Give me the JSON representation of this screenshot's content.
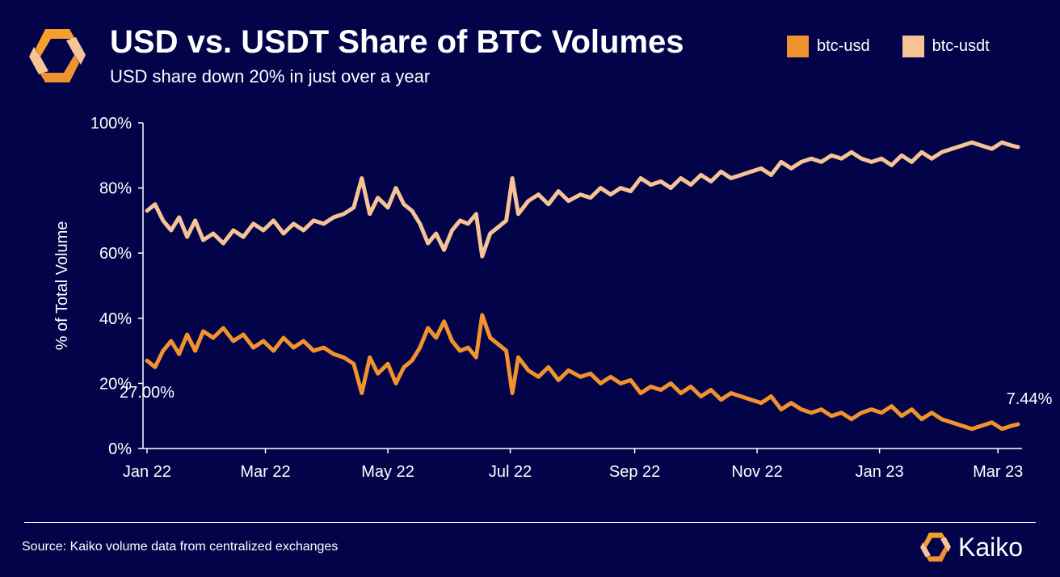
{
  "header": {
    "title": "USD vs. USDT Share of BTC Volumes",
    "subtitle": "USD share down 20% in just over a year"
  },
  "footer": {
    "source": "Source: Kaiko volume data from centralized exchanges",
    "brand": "Kaiko"
  },
  "colors": {
    "background": "#03034a",
    "btc_usd": "#f0922e",
    "btc_usdt": "#f6c396",
    "text": "#ffffff"
  },
  "icons": {
    "logo": "kaiko-logo-icon"
  },
  "chart_data": {
    "type": "line",
    "ylabel": "% of Total Volume",
    "ylim": [
      0,
      100
    ],
    "y_ticks": [
      "0%",
      "20%",
      "40%",
      "60%",
      "80%",
      "100%"
    ],
    "x_range": [
      "2021-12-30",
      "2023-03-13"
    ],
    "x_ticks": [
      {
        "date": "2022-01-01",
        "label": "Jan 22"
      },
      {
        "date": "2022-03-01",
        "label": "Mar 22"
      },
      {
        "date": "2022-05-01",
        "label": "May 22"
      },
      {
        "date": "2022-07-01",
        "label": "Jul 22"
      },
      {
        "date": "2022-09-01",
        "label": "Sep 22"
      },
      {
        "date": "2022-11-01",
        "label": "Nov 22"
      },
      {
        "date": "2023-01-01",
        "label": "Jan 23"
      },
      {
        "date": "2023-03-01",
        "label": "Mar 23"
      }
    ],
    "legend_position": "top-right",
    "series": [
      {
        "name": "btc-usd",
        "color": "#f0922e",
        "points": [
          [
            "2022-01-01",
            27
          ],
          [
            "2022-01-05",
            25
          ],
          [
            "2022-01-09",
            30
          ],
          [
            "2022-01-13",
            33
          ],
          [
            "2022-01-17",
            29
          ],
          [
            "2022-01-21",
            35
          ],
          [
            "2022-01-25",
            30
          ],
          [
            "2022-01-29",
            36
          ],
          [
            "2022-02-03",
            34
          ],
          [
            "2022-02-08",
            37
          ],
          [
            "2022-02-13",
            33
          ],
          [
            "2022-02-18",
            35
          ],
          [
            "2022-02-23",
            31
          ],
          [
            "2022-02-28",
            33
          ],
          [
            "2022-03-05",
            30
          ],
          [
            "2022-03-10",
            34
          ],
          [
            "2022-03-15",
            31
          ],
          [
            "2022-03-20",
            33
          ],
          [
            "2022-03-25",
            30
          ],
          [
            "2022-03-30",
            31
          ],
          [
            "2022-04-04",
            29
          ],
          [
            "2022-04-09",
            28
          ],
          [
            "2022-04-14",
            26
          ],
          [
            "2022-04-18",
            17
          ],
          [
            "2022-04-22",
            28
          ],
          [
            "2022-04-26",
            23
          ],
          [
            "2022-05-01",
            26
          ],
          [
            "2022-05-05",
            20
          ],
          [
            "2022-05-09",
            25
          ],
          [
            "2022-05-13",
            27
          ],
          [
            "2022-05-17",
            31
          ],
          [
            "2022-05-21",
            37
          ],
          [
            "2022-05-25",
            34
          ],
          [
            "2022-05-29",
            39
          ],
          [
            "2022-06-02",
            33
          ],
          [
            "2022-06-06",
            30
          ],
          [
            "2022-06-10",
            31
          ],
          [
            "2022-06-14",
            28
          ],
          [
            "2022-06-17",
            41
          ],
          [
            "2022-06-21",
            34
          ],
          [
            "2022-06-25",
            32
          ],
          [
            "2022-06-29",
            30
          ],
          [
            "2022-07-02",
            17
          ],
          [
            "2022-07-05",
            28
          ],
          [
            "2022-07-10",
            24
          ],
          [
            "2022-07-15",
            22
          ],
          [
            "2022-07-20",
            25
          ],
          [
            "2022-07-25",
            21
          ],
          [
            "2022-07-30",
            24
          ],
          [
            "2022-08-05",
            22
          ],
          [
            "2022-08-10",
            23
          ],
          [
            "2022-08-15",
            20
          ],
          [
            "2022-08-20",
            22
          ],
          [
            "2022-08-25",
            20
          ],
          [
            "2022-08-30",
            21
          ],
          [
            "2022-09-04",
            17
          ],
          [
            "2022-09-09",
            19
          ],
          [
            "2022-09-14",
            18
          ],
          [
            "2022-09-19",
            20
          ],
          [
            "2022-09-24",
            17
          ],
          [
            "2022-09-29",
            19
          ],
          [
            "2022-10-04",
            16
          ],
          [
            "2022-10-09",
            18
          ],
          [
            "2022-10-14",
            15
          ],
          [
            "2022-10-19",
            17
          ],
          [
            "2022-10-24",
            16
          ],
          [
            "2022-10-29",
            15
          ],
          [
            "2022-11-03",
            14
          ],
          [
            "2022-11-08",
            16
          ],
          [
            "2022-11-13",
            12
          ],
          [
            "2022-11-18",
            14
          ],
          [
            "2022-11-23",
            12
          ],
          [
            "2022-11-28",
            11
          ],
          [
            "2022-12-03",
            12
          ],
          [
            "2022-12-08",
            10
          ],
          [
            "2022-12-13",
            11
          ],
          [
            "2022-12-18",
            9
          ],
          [
            "2022-12-23",
            11
          ],
          [
            "2022-12-28",
            12
          ],
          [
            "2023-01-02",
            11
          ],
          [
            "2023-01-07",
            13
          ],
          [
            "2023-01-12",
            10
          ],
          [
            "2023-01-17",
            12
          ],
          [
            "2023-01-22",
            9
          ],
          [
            "2023-01-27",
            11
          ],
          [
            "2023-02-01",
            9
          ],
          [
            "2023-02-06",
            8
          ],
          [
            "2023-02-11",
            7
          ],
          [
            "2023-02-16",
            6
          ],
          [
            "2023-02-21",
            7
          ],
          [
            "2023-02-26",
            8
          ],
          [
            "2023-03-03",
            6
          ],
          [
            "2023-03-08",
            7
          ],
          [
            "2023-03-11",
            7.44
          ]
        ]
      },
      {
        "name": "btc-usdt",
        "color": "#f6c396",
        "points": [
          [
            "2022-01-01",
            73
          ],
          [
            "2022-01-05",
            75
          ],
          [
            "2022-01-09",
            70
          ],
          [
            "2022-01-13",
            67
          ],
          [
            "2022-01-17",
            71
          ],
          [
            "2022-01-21",
            65
          ],
          [
            "2022-01-25",
            70
          ],
          [
            "2022-01-29",
            64
          ],
          [
            "2022-02-03",
            66
          ],
          [
            "2022-02-08",
            63
          ],
          [
            "2022-02-13",
            67
          ],
          [
            "2022-02-18",
            65
          ],
          [
            "2022-02-23",
            69
          ],
          [
            "2022-02-28",
            67
          ],
          [
            "2022-03-05",
            70
          ],
          [
            "2022-03-10",
            66
          ],
          [
            "2022-03-15",
            69
          ],
          [
            "2022-03-20",
            67
          ],
          [
            "2022-03-25",
            70
          ],
          [
            "2022-03-30",
            69
          ],
          [
            "2022-04-04",
            71
          ],
          [
            "2022-04-09",
            72
          ],
          [
            "2022-04-14",
            74
          ],
          [
            "2022-04-18",
            83
          ],
          [
            "2022-04-22",
            72
          ],
          [
            "2022-04-26",
            77
          ],
          [
            "2022-05-01",
            74
          ],
          [
            "2022-05-05",
            80
          ],
          [
            "2022-05-09",
            75
          ],
          [
            "2022-05-13",
            73
          ],
          [
            "2022-05-17",
            69
          ],
          [
            "2022-05-21",
            63
          ],
          [
            "2022-05-25",
            66
          ],
          [
            "2022-05-29",
            61
          ],
          [
            "2022-06-02",
            67
          ],
          [
            "2022-06-06",
            70
          ],
          [
            "2022-06-10",
            69
          ],
          [
            "2022-06-14",
            72
          ],
          [
            "2022-06-17",
            59
          ],
          [
            "2022-06-21",
            66
          ],
          [
            "2022-06-25",
            68
          ],
          [
            "2022-06-29",
            70
          ],
          [
            "2022-07-02",
            83
          ],
          [
            "2022-07-05",
            72
          ],
          [
            "2022-07-10",
            76
          ],
          [
            "2022-07-15",
            78
          ],
          [
            "2022-07-20",
            75
          ],
          [
            "2022-07-25",
            79
          ],
          [
            "2022-07-30",
            76
          ],
          [
            "2022-08-05",
            78
          ],
          [
            "2022-08-10",
            77
          ],
          [
            "2022-08-15",
            80
          ],
          [
            "2022-08-20",
            78
          ],
          [
            "2022-08-25",
            80
          ],
          [
            "2022-08-30",
            79
          ],
          [
            "2022-09-04",
            83
          ],
          [
            "2022-09-09",
            81
          ],
          [
            "2022-09-14",
            82
          ],
          [
            "2022-09-19",
            80
          ],
          [
            "2022-09-24",
            83
          ],
          [
            "2022-09-29",
            81
          ],
          [
            "2022-10-04",
            84
          ],
          [
            "2022-10-09",
            82
          ],
          [
            "2022-10-14",
            85
          ],
          [
            "2022-10-19",
            83
          ],
          [
            "2022-10-24",
            84
          ],
          [
            "2022-10-29",
            85
          ],
          [
            "2022-11-03",
            86
          ],
          [
            "2022-11-08",
            84
          ],
          [
            "2022-11-13",
            88
          ],
          [
            "2022-11-18",
            86
          ],
          [
            "2022-11-23",
            88
          ],
          [
            "2022-11-28",
            89
          ],
          [
            "2022-12-03",
            88
          ],
          [
            "2022-12-08",
            90
          ],
          [
            "2022-12-13",
            89
          ],
          [
            "2022-12-18",
            91
          ],
          [
            "2022-12-23",
            89
          ],
          [
            "2022-12-28",
            88
          ],
          [
            "2023-01-02",
            89
          ],
          [
            "2023-01-07",
            87
          ],
          [
            "2023-01-12",
            90
          ],
          [
            "2023-01-17",
            88
          ],
          [
            "2023-01-22",
            91
          ],
          [
            "2023-01-27",
            89
          ],
          [
            "2023-02-01",
            91
          ],
          [
            "2023-02-06",
            92
          ],
          [
            "2023-02-11",
            93
          ],
          [
            "2023-02-16",
            94
          ],
          [
            "2023-02-21",
            93
          ],
          [
            "2023-02-26",
            92
          ],
          [
            "2023-03-03",
            94
          ],
          [
            "2023-03-08",
            93
          ],
          [
            "2023-03-11",
            92.56
          ]
        ]
      }
    ],
    "annotations": [
      {
        "text": "27.00%",
        "series": "btc-usd",
        "date": "2022-01-01",
        "value": 27
      },
      {
        "text": "7.44%",
        "series": "btc-usd",
        "date": "2023-03-11",
        "value": 7.44
      }
    ]
  }
}
